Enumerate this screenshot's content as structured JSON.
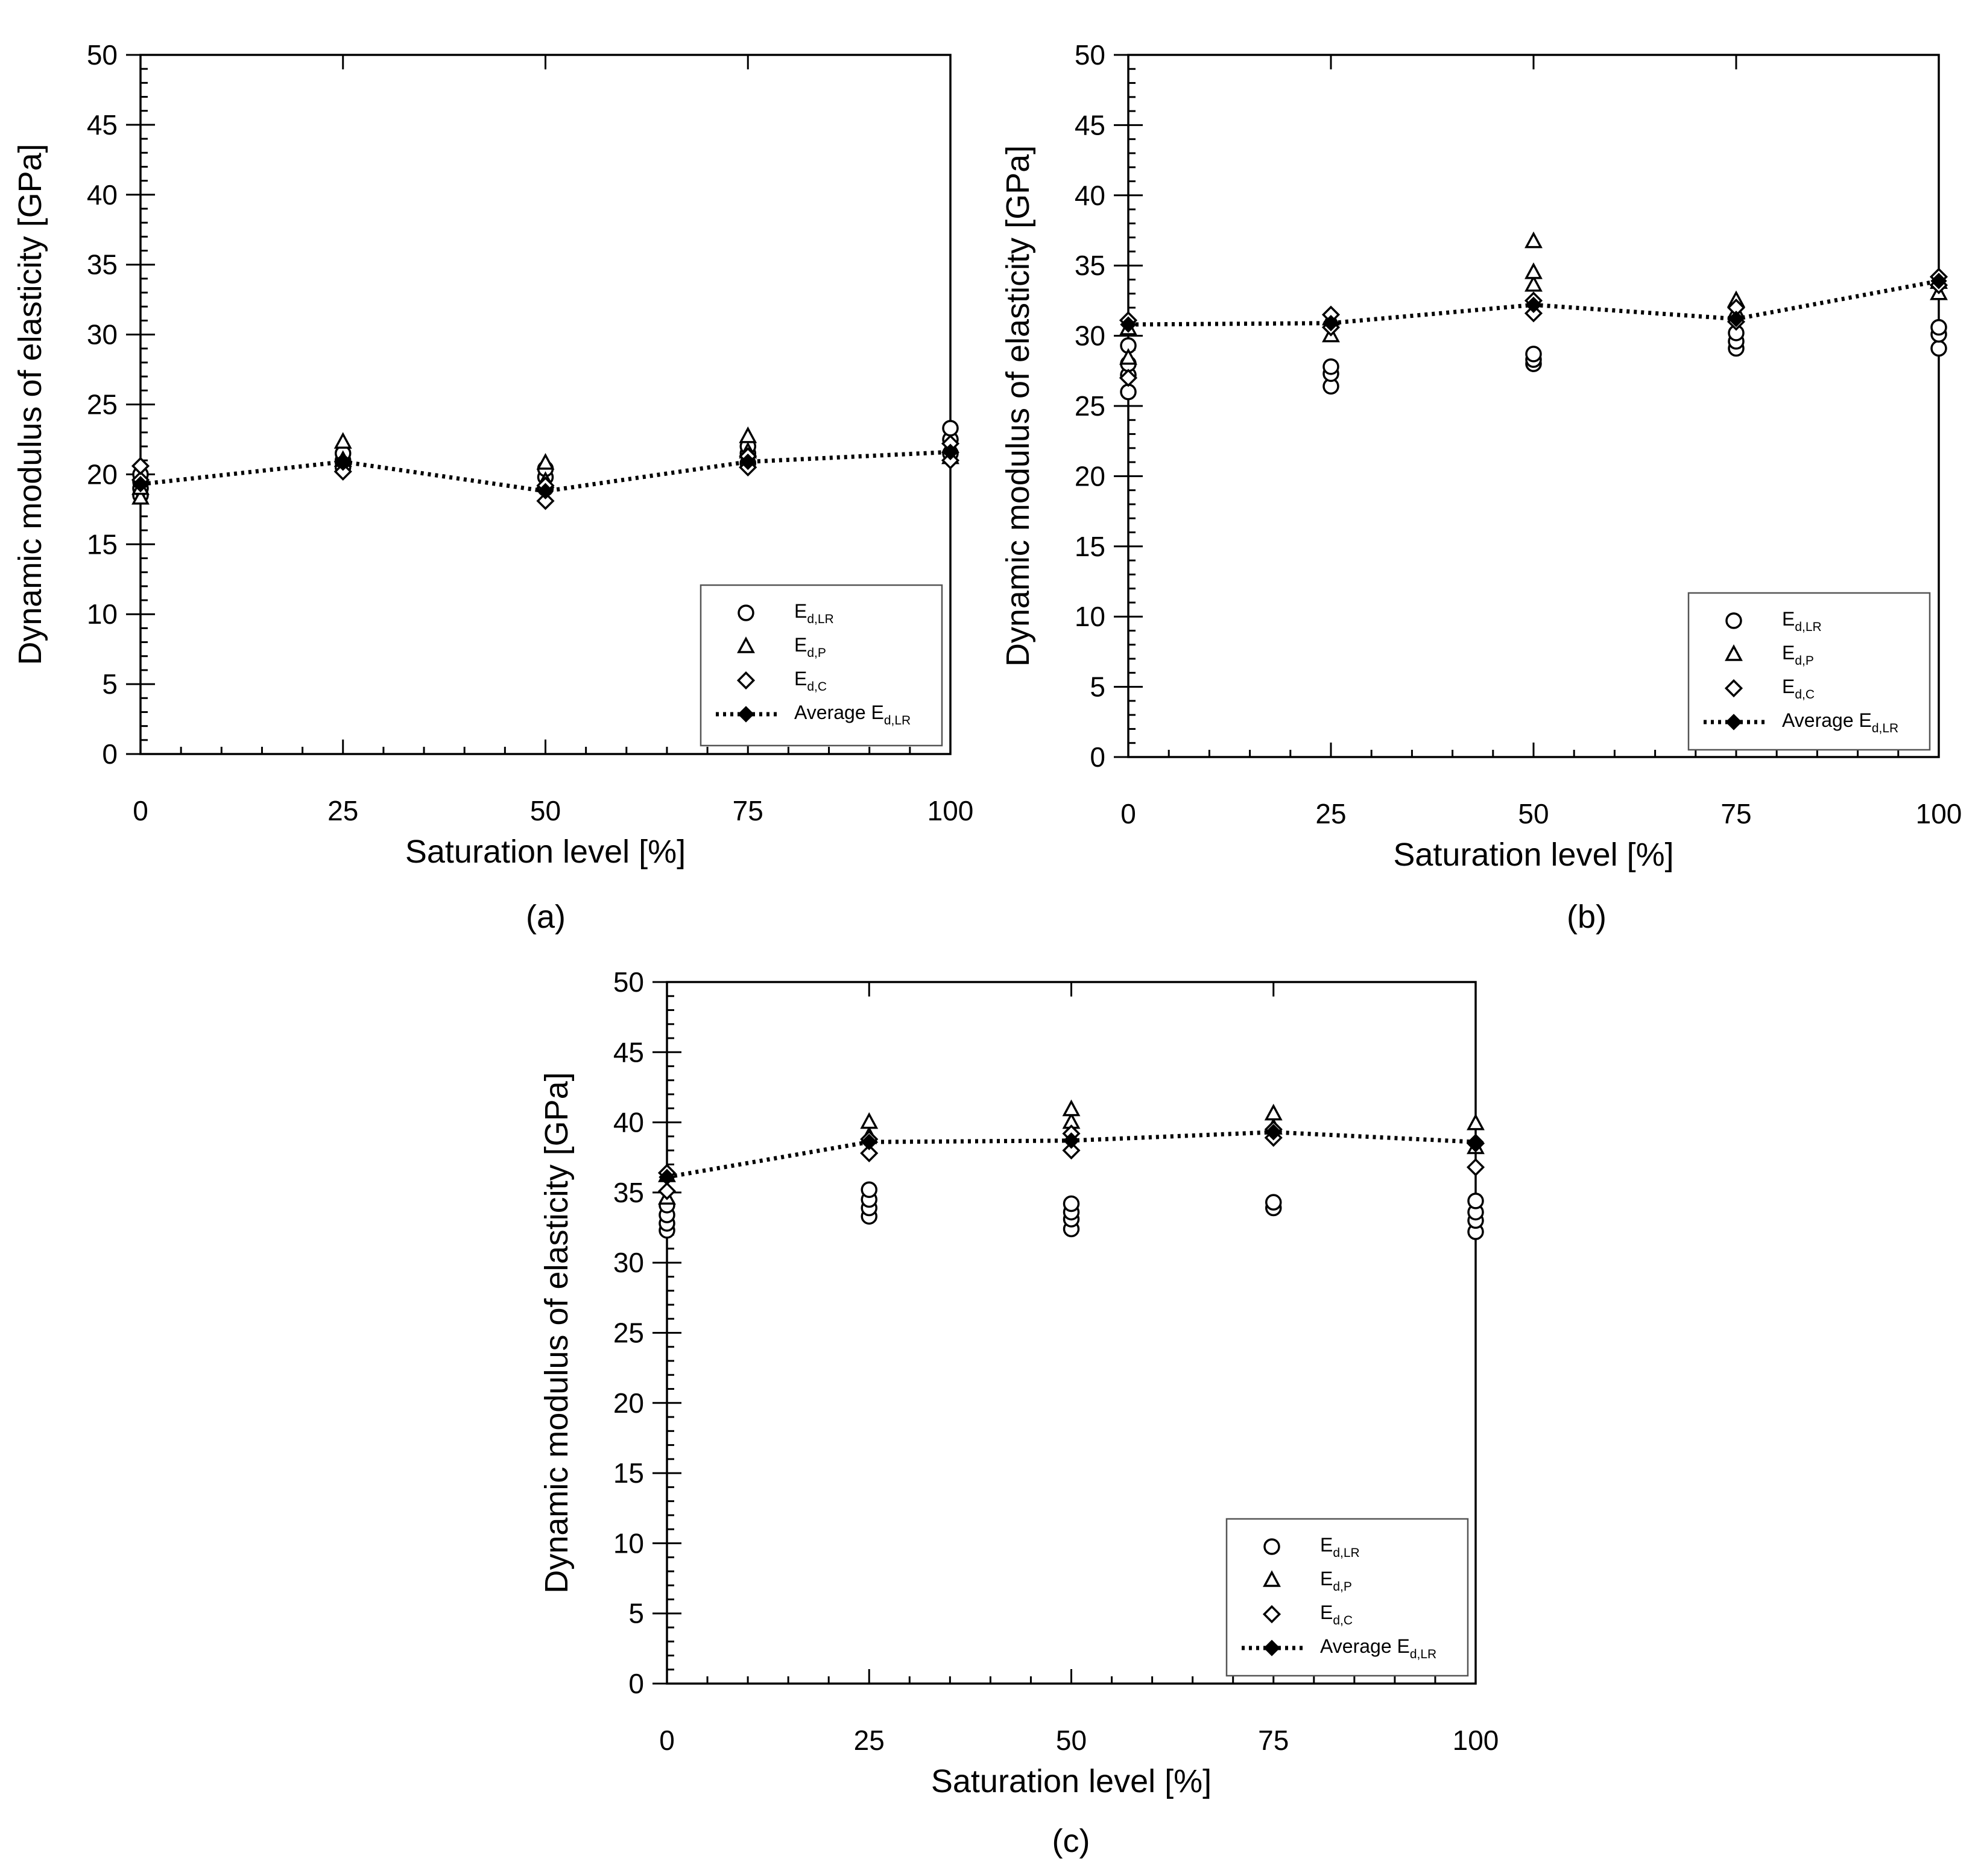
{
  "chart_data": [
    {
      "panel": "(a)",
      "type": "scatter",
      "xlabel": "Saturation level [%]",
      "ylabel": "Dynamic modulus of elasticity [GPa]",
      "xlim": [
        0,
        100
      ],
      "ylim": [
        0,
        50
      ],
      "x_ticks": [
        0,
        25,
        50,
        75,
        100
      ],
      "y_ticks": [
        0,
        5,
        10,
        15,
        20,
        25,
        30,
        35,
        40,
        45,
        50
      ],
      "legend_position": "bottom-right",
      "series": [
        {
          "name": "E_d,LR",
          "marker": "circle",
          "points": [
            [
              0,
              18.5
            ],
            [
              0,
              19.0
            ],
            [
              0,
              19.5
            ],
            [
              0,
              20.0
            ],
            [
              25,
              20.5
            ],
            [
              25,
              21.0
            ],
            [
              25,
              21.5
            ],
            [
              50,
              19.0
            ],
            [
              50,
              19.8
            ],
            [
              50,
              20.4
            ],
            [
              75,
              20.8
            ],
            [
              75,
              21.5
            ],
            [
              75,
              22.0
            ],
            [
              100,
              21.5
            ],
            [
              100,
              22.5
            ],
            [
              100,
              23.3
            ]
          ]
        },
        {
          "name": "E_d,P",
          "marker": "triangle",
          "points": [
            [
              0,
              18.3
            ],
            [
              0,
              19.0
            ],
            [
              25,
              21.0
            ],
            [
              25,
              22.3
            ],
            [
              50,
              19.5
            ],
            [
              50,
              20.8
            ],
            [
              75,
              21.6
            ],
            [
              75,
              22.7
            ],
            [
              100,
              21.2
            ],
            [
              100,
              22.0
            ]
          ]
        },
        {
          "name": "E_d,C",
          "marker": "diamond",
          "points": [
            [
              0,
              19.6
            ],
            [
              0,
              20.6
            ],
            [
              25,
              20.2
            ],
            [
              25,
              20.9
            ],
            [
              50,
              18.1
            ],
            [
              50,
              19.2
            ],
            [
              75,
              20.5
            ],
            [
              75,
              21.3
            ],
            [
              100,
              21.0
            ],
            [
              100,
              22.2
            ]
          ]
        },
        {
          "name": "Average E_d,LR",
          "marker": "filled-diamond",
          "line": "dotted",
          "points": [
            [
              0,
              19.3
            ],
            [
              25,
              20.9
            ],
            [
              50,
              18.8
            ],
            [
              75,
              20.9
            ],
            [
              100,
              21.6
            ]
          ]
        }
      ]
    },
    {
      "panel": "(b)",
      "type": "scatter",
      "xlabel": "Saturation level [%]",
      "ylabel": "Dynamic modulus of elasticity [GPa]",
      "xlim": [
        0,
        100
      ],
      "ylim": [
        0,
        50
      ],
      "x_ticks": [
        0,
        25,
        50,
        75,
        100
      ],
      "y_ticks": [
        0,
        5,
        10,
        15,
        20,
        25,
        30,
        35,
        40,
        45,
        50
      ],
      "legend_position": "bottom-right",
      "series": [
        {
          "name": "E_d,LR",
          "marker": "circle",
          "points": [
            [
              0,
              26.0
            ],
            [
              0,
              27.2
            ],
            [
              0,
              28.0
            ],
            [
              0,
              29.3
            ],
            [
              25,
              26.4
            ],
            [
              25,
              27.3
            ],
            [
              25,
              27.8
            ],
            [
              50,
              28.0
            ],
            [
              50,
              28.3
            ],
            [
              50,
              28.7
            ],
            [
              75,
              29.1
            ],
            [
              75,
              29.6
            ],
            [
              75,
              30.2
            ],
            [
              100,
              29.1
            ],
            [
              100,
              30.1
            ],
            [
              100,
              30.6
            ]
          ]
        },
        {
          "name": "E_d,P",
          "marker": "triangle",
          "points": [
            [
              0,
              28.4
            ],
            [
              0,
              30.5
            ],
            [
              25,
              30.0
            ],
            [
              25,
              31.2
            ],
            [
              50,
              33.6
            ],
            [
              50,
              34.5
            ],
            [
              50,
              36.7
            ],
            [
              75,
              31.7
            ],
            [
              75,
              32.5
            ],
            [
              100,
              33.0
            ],
            [
              100,
              33.8
            ]
          ]
        },
        {
          "name": "E_d,C",
          "marker": "diamond",
          "points": [
            [
              0,
              27.0
            ],
            [
              0,
              31.1
            ],
            [
              25,
              30.6
            ],
            [
              25,
              31.5
            ],
            [
              50,
              31.6
            ],
            [
              50,
              32.5
            ],
            [
              75,
              31.0
            ],
            [
              75,
              32.0
            ],
            [
              100,
              33.6
            ],
            [
              100,
              34.2
            ]
          ]
        },
        {
          "name": "Average E_d,LR",
          "marker": "filled-diamond",
          "line": "dotted",
          "points": [
            [
              0,
              30.8
            ],
            [
              25,
              30.9
            ],
            [
              50,
              32.2
            ],
            [
              75,
              31.2
            ],
            [
              100,
              33.9
            ]
          ]
        }
      ]
    },
    {
      "panel": "(c)",
      "type": "scatter",
      "xlabel": "Saturation level [%]",
      "ylabel": "Dynamic modulus of elasticity [GPa]",
      "xlim": [
        0,
        100
      ],
      "ylim": [
        0,
        50
      ],
      "x_ticks": [
        0,
        25,
        50,
        75,
        100
      ],
      "y_ticks": [
        0,
        5,
        10,
        15,
        20,
        25,
        30,
        35,
        40,
        45,
        50
      ],
      "legend_position": "bottom-right",
      "series": [
        {
          "name": "E_d,LR",
          "marker": "circle",
          "points": [
            [
              0,
              32.3
            ],
            [
              0,
              32.8
            ],
            [
              0,
              33.4
            ],
            [
              0,
              34.1
            ],
            [
              25,
              33.3
            ],
            [
              25,
              33.9
            ],
            [
              25,
              34.5
            ],
            [
              25,
              35.2
            ],
            [
              50,
              32.4
            ],
            [
              50,
              33.1
            ],
            [
              50,
              33.6
            ],
            [
              50,
              34.2
            ],
            [
              75,
              33.9
            ],
            [
              75,
              34.3
            ],
            [
              100,
              32.2
            ],
            [
              100,
              33.0
            ],
            [
              100,
              33.6
            ],
            [
              100,
              34.4
            ]
          ]
        },
        {
          "name": "E_d,P",
          "marker": "triangle",
          "points": [
            [
              0,
              34.6
            ],
            [
              0,
              36.2
            ],
            [
              25,
              39.0
            ],
            [
              25,
              40.0
            ],
            [
              50,
              40.0
            ],
            [
              50,
              40.9
            ],
            [
              75,
              39.6
            ],
            [
              75,
              40.6
            ],
            [
              100,
              38.2
            ],
            [
              100,
              39.9
            ]
          ]
        },
        {
          "name": "E_d,C",
          "marker": "diamond",
          "points": [
            [
              0,
              35.1
            ],
            [
              0,
              36.4
            ],
            [
              25,
              37.8
            ],
            [
              25,
              38.8
            ],
            [
              50,
              38.0
            ],
            [
              50,
              39.2
            ],
            [
              75,
              38.9
            ],
            [
              75,
              39.5
            ],
            [
              100,
              36.8
            ],
            [
              100,
              38.5
            ]
          ]
        },
        {
          "name": "Average E_d,LR",
          "marker": "filled-diamond",
          "line": "dotted",
          "points": [
            [
              0,
              36.1
            ],
            [
              25,
              38.6
            ],
            [
              50,
              38.7
            ],
            [
              75,
              39.3
            ],
            [
              100,
              38.6
            ]
          ]
        }
      ]
    }
  ],
  "legend": {
    "circle_label": "E",
    "circle_sub": "d,LR",
    "triangle_label": "E",
    "triangle_sub": "d,P",
    "diamond_label": "E",
    "diamond_sub": "d,C",
    "average_label": "Average E",
    "average_sub": "d,LR"
  }
}
